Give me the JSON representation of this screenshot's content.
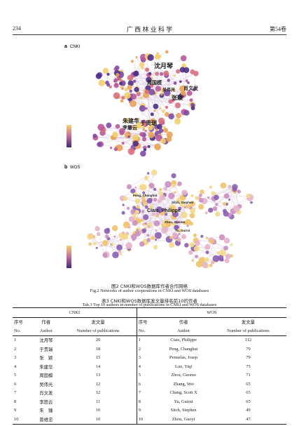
{
  "header": {
    "page": "234",
    "journal": "广 西 林 业 科 学",
    "volume": "第54卷"
  },
  "figure": {
    "panel_a": {
      "label": "a",
      "source": "CNKI",
      "nodes": [
        "沈月琴",
        "朱建华",
        "于贵瑞",
        "张颖",
        "周国模",
        "吴伟光",
        "肖文发",
        "李怒云"
      ]
    },
    "panel_b": {
      "label": "b",
      "source": "WOS",
      "nodes": [
        "Ciais, Philippe",
        "Peng, Changhui",
        "Zhou, Guomo",
        "Yu, Guirui",
        "Sitch, Stephen"
      ]
    },
    "caption_cn": "图2  CNKI和WOS数据库作者合作网络",
    "caption_en": "Fig.2   Networks of author cooperations in CNKI and WOS databases"
  },
  "table": {
    "caption_cn": "表3  CNKI和WOS数据库发文量排名前10的作者",
    "caption_en": "Tab.3   Top 10 authors in number of publications in CNKI and WOS databases",
    "groups": [
      "CNKI",
      "WOS"
    ],
    "columns": [
      {
        "cn": "序号",
        "en": "No."
      },
      {
        "cn": "作者",
        "en": "Author"
      },
      {
        "cn": "发文量",
        "en": "Number of publications"
      }
    ],
    "rows": [
      [
        [
          1,
          "沈月琴",
          20
        ],
        [
          1,
          "Ciais, Philippe",
          112
        ]
      ],
      [
        [
          2,
          "于贵瑞",
          18
        ],
        [
          2,
          "Peng, Changhui",
          79
        ]
      ],
      [
        [
          3,
          "张　颖",
          15
        ],
        [
          3,
          "Penuelas, Josep",
          79
        ]
      ],
      [
        [
          4,
          "朱建华",
          14
        ],
        [
          4,
          "Luo, Yiqi",
          75
        ]
      ],
      [
        [
          5,
          "周国模",
          13
        ],
        [
          5,
          "Zhou, Guomo",
          71
        ]
      ],
      [
        [
          6,
          "吴伟光",
          12
        ],
        [
          6,
          "Zhang, Wei",
          65
        ]
      ],
      [
        [
          7,
          "肖文发",
          12
        ],
        [
          7,
          "Chang, Scott X",
          65
        ]
      ],
      [
        [
          8,
          "李怒云",
          11
        ],
        [
          8,
          "Yu, Guirui",
          65
        ]
      ],
      [
        [
          9,
          "朱　臻",
          10
        ],
        [
          9,
          "Sitch, Stephen",
          49
        ]
      ],
      [
        [
          10,
          "曾维忠",
          10
        ],
        [
          10,
          "Zhou, Guoyi",
          47
        ]
      ]
    ]
  }
}
